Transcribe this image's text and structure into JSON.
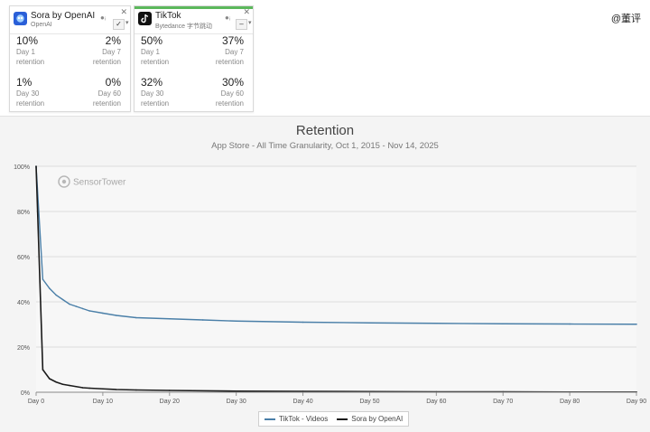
{
  "cards": [
    {
      "app_name": "Sora by OpenAI",
      "publisher": "OpenAI",
      "stripe_color": "#8ab4e8",
      "select_glyph": "✓",
      "metrics": [
        {
          "value": "10%",
          "day": "Day 1",
          "label": "retention"
        },
        {
          "value": "2%",
          "day": "Day 7",
          "label": "retention"
        },
        {
          "value": "1%",
          "day": "Day 30",
          "label": "retention"
        },
        {
          "value": "0%",
          "day": "Day 60",
          "label": "retention"
        }
      ]
    },
    {
      "app_name": "TikTok",
      "publisher": "Bytedance 字节跳动",
      "stripe_color": "#5cb85c",
      "select_glyph": "–",
      "metrics": [
        {
          "value": "50%",
          "day": "Day 1",
          "label": "retention"
        },
        {
          "value": "37%",
          "day": "Day 7",
          "label": "retention"
        },
        {
          "value": "32%",
          "day": "Day 30",
          "label": "retention"
        },
        {
          "value": "30%",
          "day": "Day 60",
          "label": "retention"
        }
      ]
    }
  ],
  "watermark": "@董评",
  "chart_data": {
    "type": "line",
    "title": "Retention",
    "subtitle": "App Store - All Time Granularity, Oct 1, 2015 - Nov 14, 2025",
    "brand": "SensorTower",
    "xlabel": "",
    "ylabel": "",
    "x_ticks": [
      "Day 0",
      "Day 10",
      "Day 20",
      "Day 30",
      "Day 40",
      "Day 50",
      "Day 60",
      "Day 70",
      "Day 80",
      "Day 90"
    ],
    "x_tick_values": [
      0,
      10,
      20,
      30,
      40,
      50,
      60,
      70,
      80,
      90
    ],
    "y_ticks": [
      "0%",
      "20%",
      "40%",
      "60%",
      "80%",
      "100%"
    ],
    "y_tick_values": [
      0,
      20,
      40,
      60,
      80,
      100
    ],
    "xlim": [
      0,
      90
    ],
    "ylim": [
      0,
      100
    ],
    "grid": true,
    "legend_position": "bottom-center",
    "series": [
      {
        "name": "TikTok - Videos",
        "color": "#4a7fa8",
        "x": [
          0,
          1,
          2,
          3,
          4,
          5,
          6,
          7,
          8,
          10,
          12,
          15,
          20,
          25,
          30,
          40,
          50,
          60,
          70,
          80,
          90
        ],
        "y": [
          100,
          50,
          46,
          43,
          41,
          39,
          38,
          37,
          36,
          35,
          34,
          33,
          32.5,
          32,
          31.5,
          31,
          30.7,
          30.5,
          30.3,
          30.2,
          30.1
        ]
      },
      {
        "name": "Sora by OpenAI",
        "color": "#1a1a1a",
        "x": [
          0,
          1,
          2,
          3,
          4,
          5,
          6,
          7,
          8,
          10,
          12,
          15,
          20,
          30,
          40,
          50,
          60,
          70,
          80,
          90
        ],
        "y": [
          100,
          10,
          6,
          4.5,
          3.5,
          3,
          2.5,
          2,
          1.8,
          1.5,
          1.2,
          1,
          0.8,
          0.5,
          0.4,
          0.3,
          0.2,
          0.2,
          0.1,
          0.1
        ]
      }
    ]
  }
}
